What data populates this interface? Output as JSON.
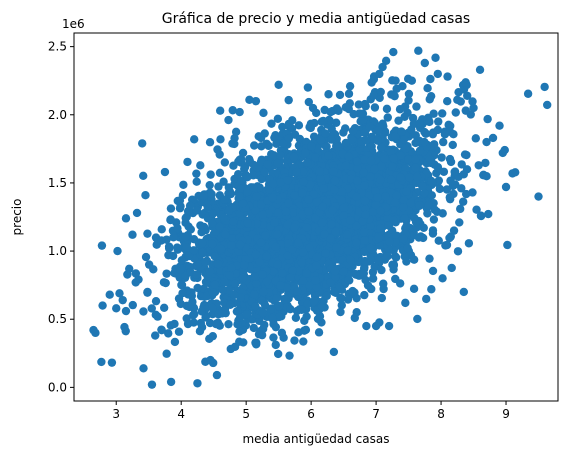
{
  "chart_data": {
    "type": "scatter",
    "title": "Gráfica de precio y media antigüedad casas",
    "xlabel": "media antigüedad casas",
    "ylabel": "precio",
    "y_offset_label": "1e6",
    "xlim": [
      2.35,
      9.8
    ],
    "ylim": [
      -0.1,
      2.6
    ],
    "y_scale": 1000000,
    "xticks": [
      3,
      4,
      5,
      6,
      7,
      8,
      9
    ],
    "xtick_labels": [
      "3",
      "4",
      "5",
      "6",
      "7",
      "8",
      "9"
    ],
    "yticks": [
      0.0,
      0.5,
      1.0,
      1.5,
      2.0,
      2.5
    ],
    "ytick_labels": [
      "0.0",
      "0.5",
      "1.0",
      "1.5",
      "2.0",
      "2.5"
    ],
    "grid": false,
    "marker_color": "#1f77b4",
    "series": [
      {
        "points": [
          [
            2.65,
            0.42
          ],
          [
            2.68,
            0.4
          ],
          [
            2.78,
            1.04
          ],
          [
            2.79,
            0.6
          ],
          [
            2.9,
            0.68
          ],
          [
            3.0,
            0.58
          ],
          [
            3.02,
            1.0
          ],
          [
            3.05,
            0.69
          ],
          [
            3.1,
            0.64
          ],
          [
            3.15,
            0.56
          ],
          [
            3.15,
            1.24
          ],
          [
            3.2,
            0.87
          ],
          [
            3.25,
            1.12
          ],
          [
            3.3,
            0.77
          ],
          [
            3.32,
            1.28
          ],
          [
            3.4,
            1.79
          ],
          [
            3.42,
            0.14
          ],
          [
            3.45,
            1.41
          ],
          [
            3.55,
            0.02
          ],
          [
            3.6,
            0.38
          ],
          [
            3.7,
            0.42
          ],
          [
            3.75,
            1.58
          ],
          [
            4.25,
            0.03
          ],
          [
            4.2,
            1.82
          ],
          [
            4.45,
            0.2
          ],
          [
            4.55,
            0.09
          ],
          [
            4.6,
            2.03
          ],
          [
            4.9,
            2.02
          ],
          [
            5.05,
            2.11
          ],
          [
            5.15,
            2.1
          ],
          [
            5.5,
            2.22
          ],
          [
            5.55,
            0.4
          ],
          [
            5.95,
            2.2
          ],
          [
            6.3,
            2.02
          ],
          [
            6.35,
            0.26
          ],
          [
            6.6,
            2.21
          ],
          [
            6.85,
            0.45
          ],
          [
            7.05,
            2.3
          ],
          [
            7.1,
            2.35
          ],
          [
            7.0,
            0.45
          ],
          [
            7.2,
            0.45
          ],
          [
            7.3,
            2.25
          ],
          [
            7.45,
            0.62
          ],
          [
            7.55,
            2.25
          ],
          [
            7.65,
            2.47
          ],
          [
            7.75,
            2.38
          ],
          [
            7.85,
            0.72
          ],
          [
            7.95,
            2.3
          ],
          [
            8.1,
            2.28
          ],
          [
            8.2,
            1.15
          ],
          [
            8.25,
            2.11
          ],
          [
            8.35,
            0.7
          ],
          [
            8.4,
            1.6
          ],
          [
            8.5,
            2.05
          ],
          [
            8.6,
            2.33
          ],
          [
            8.7,
            1.8
          ],
          [
            8.8,
            1.83
          ],
          [
            8.9,
            1.92
          ],
          [
            8.95,
            1.72
          ],
          [
            9.0,
            1.47
          ],
          [
            9.1,
            1.57
          ],
          [
            9.5,
            1.4
          ]
        ]
      }
    ]
  }
}
